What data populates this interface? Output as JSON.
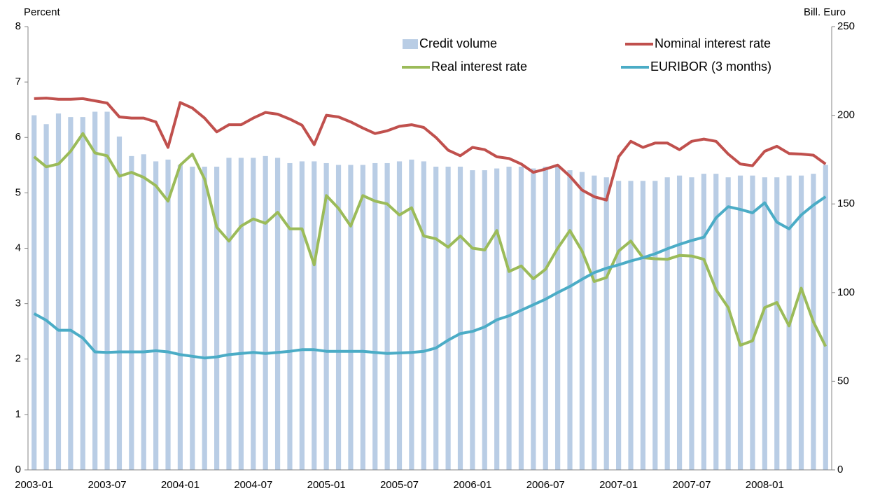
{
  "chart_data": {
    "type": "bar",
    "y_label": "Percent",
    "y2_label": "Bill. Euro",
    "categories": [
      "2003-01",
      null,
      null,
      null,
      null,
      null,
      "2003-07",
      null,
      null,
      null,
      null,
      null,
      "2004-01",
      null,
      null,
      null,
      null,
      null,
      "2004-07",
      null,
      null,
      null,
      null,
      null,
      "2005-01",
      null,
      null,
      null,
      null,
      null,
      "2005-07",
      null,
      null,
      null,
      null,
      null,
      "2006-01",
      null,
      null,
      null,
      null,
      null,
      "2006-07",
      null,
      null,
      null,
      null,
      null,
      "2007-01",
      null,
      null,
      null,
      null,
      null,
      "2007-07",
      null,
      null,
      null,
      null,
      null,
      "2008-01",
      null,
      null,
      null,
      null,
      null
    ],
    "ylim": [
      0,
      8
    ],
    "yticks": [
      0,
      1,
      2,
      3,
      4,
      5,
      6,
      7,
      8
    ],
    "y2lim": [
      0,
      250
    ],
    "y2ticks": [
      0,
      50,
      100,
      150,
      200,
      250
    ],
    "series": [
      {
        "name": "Credit volume",
        "type": "bar",
        "axis": "y2",
        "color": "#b9cde5",
        "values": [
          200,
          195,
          201,
          199,
          199,
          202,
          202,
          188,
          177,
          178,
          174,
          175,
          172,
          171,
          171,
          171,
          176,
          176,
          176,
          177,
          176,
          173,
          174,
          174,
          173,
          172,
          172,
          172,
          173,
          173,
          174,
          175,
          174,
          171,
          171,
          171,
          169,
          169,
          170,
          171,
          171,
          170,
          171,
          171,
          169,
          168,
          166,
          165,
          163,
          163,
          163,
          163,
          165,
          166,
          165,
          167,
          167,
          165,
          166,
          166,
          165,
          165,
          166,
          166,
          167,
          172
        ]
      },
      {
        "name": "Nominal interest rate",
        "type": "line",
        "color": "#c0504d",
        "values": [
          6.7,
          6.71,
          6.69,
          6.69,
          6.7,
          6.66,
          6.62,
          6.37,
          6.35,
          6.35,
          6.28,
          5.82,
          6.63,
          6.53,
          6.35,
          6.1,
          6.23,
          6.23,
          6.35,
          6.45,
          6.42,
          6.33,
          6.22,
          5.87,
          6.4,
          6.37,
          6.28,
          6.17,
          6.07,
          6.12,
          6.2,
          6.23,
          6.18,
          6.0,
          5.77,
          5.67,
          5.82,
          5.78,
          5.65,
          5.62,
          5.52,
          5.37,
          5.43,
          5.5,
          5.3,
          5.05,
          4.93,
          4.87,
          5.65,
          5.93,
          5.82,
          5.9,
          5.9,
          5.78,
          5.93,
          5.97,
          5.93,
          5.7,
          5.52,
          5.49,
          5.75,
          5.84,
          5.71,
          5.7,
          5.68,
          5.52
        ]
      },
      {
        "name": "Real interest rate",
        "type": "line",
        "color": "#9bbb59",
        "values": [
          5.65,
          5.47,
          5.52,
          5.75,
          6.07,
          5.72,
          5.67,
          5.3,
          5.37,
          5.28,
          5.13,
          4.85,
          5.5,
          5.7,
          5.25,
          4.38,
          4.13,
          4.4,
          4.53,
          4.45,
          4.65,
          4.35,
          4.35,
          3.7,
          4.95,
          4.72,
          4.4,
          4.95,
          4.85,
          4.8,
          4.6,
          4.73,
          4.22,
          4.17,
          4.02,
          4.22,
          4.0,
          3.97,
          4.32,
          3.58,
          3.68,
          3.45,
          3.62,
          4.0,
          4.32,
          3.95,
          3.4,
          3.47,
          3.95,
          4.13,
          3.83,
          3.81,
          3.8,
          3.87,
          3.86,
          3.8,
          3.25,
          2.93,
          2.25,
          2.33,
          2.93,
          3.02,
          2.6,
          3.28,
          2.67,
          2.23
        ]
      },
      {
        "name": "EURIBOR (3 months)",
        "type": "line",
        "color": "#4bacc6",
        "values": [
          2.82,
          2.7,
          2.52,
          2.52,
          2.38,
          2.13,
          2.12,
          2.13,
          2.13,
          2.13,
          2.15,
          2.13,
          2.08,
          2.05,
          2.02,
          2.04,
          2.08,
          2.1,
          2.12,
          2.1,
          2.12,
          2.14,
          2.17,
          2.17,
          2.14,
          2.14,
          2.14,
          2.14,
          2.12,
          2.1,
          2.11,
          2.12,
          2.14,
          2.2,
          2.34,
          2.46,
          2.5,
          2.58,
          2.71,
          2.78,
          2.88,
          2.98,
          3.08,
          3.2,
          3.31,
          3.44,
          3.56,
          3.64,
          3.7,
          3.77,
          3.83,
          3.9,
          3.99,
          4.07,
          4.14,
          4.2,
          4.55,
          4.75,
          4.7,
          4.64,
          4.82,
          4.47,
          4.35,
          4.6,
          4.78,
          4.93
        ]
      }
    ]
  }
}
